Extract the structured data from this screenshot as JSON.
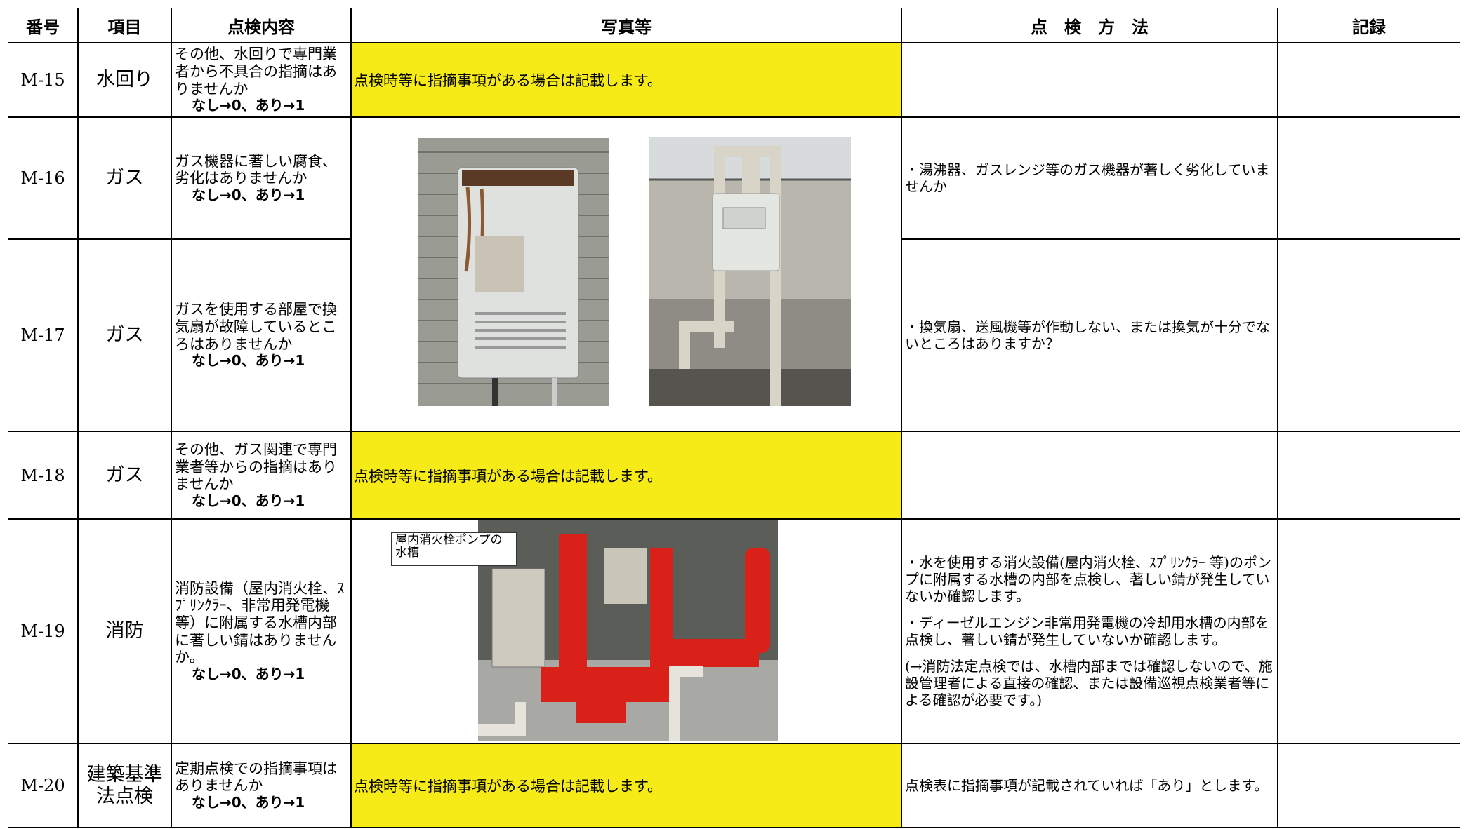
{
  "table": {
    "header": [
      "番号",
      "項目",
      "点検内容",
      "写真等",
      "点　検　方　法",
      "記録"
    ],
    "rows": [
      {
        "no": "M-15",
        "item": "水回り",
        "content": "その他、水回りで専門業者から不具合の指摘はありませんか",
        "answer": "なし→0、あり→1",
        "photo_note": "点検時等に指摘事項がある場合は記載します。"
      },
      {
        "no": "M-16",
        "item": "ガス",
        "content": "ガス機器に著しい腐食、劣化はありませんか",
        "answer": "なし→0、あり→1",
        "method": [
          "・湯沸器、ガスレンジ等のガス機器が著しく劣化していませんか"
        ]
      },
      {
        "no": "M-17",
        "item": "ガス",
        "content": "ガスを使用する部屋で換気扇が故障しているところはありませんか",
        "answer": "なし→0、あり→1",
        "method": [
          "・換気扇、送風機等が作動しない、または換気が十分でないところはありますか？"
        ]
      },
      {
        "no": "M-18",
        "item": "ガス",
        "content": "その他、ガス関連で専門業者等からの指摘はありませんか",
        "answer": "なし→0、あり→1",
        "photo_note": "点検時等に指摘事項がある場合は記載します。"
      },
      {
        "no": "M-19",
        "item": "消防",
        "content": "消防設備（屋内消火栓、ｽﾌﾟﾘﾝｸﾗｰ、非常用発電機等）に附属する水槽内部に著しい錆はありませんか。",
        "answer": "なし→0、あり→1",
        "photo_callout": "屋内消火栓ポンプの水槽",
        "method": [
          "・水を使用する消火設備(屋内消火栓、ｽﾌﾟﾘﾝｸﾗｰ 等)のポンプに附属する水槽の内部を点検し、著しい錆が発生していないか確認します。",
          "・ディーゼルエンジン非常用発電機の冷却用水槽の内部を点検し、著しい錆が発生していないか確認します。",
          "(→消防法定点検では、水槽内部までは確認しないので、施設管理者による直接の確認、または設備巡視点検業者等による確認が必要です。)"
        ]
      },
      {
        "no": "M-20",
        "item": "建築基準法点検",
        "content": "定期点検での指摘事項はありませんか",
        "answer": "なし→0、あり→1",
        "photo_note": "点検時等に指摘事項がある場合は記載します。",
        "method": [
          "点検表に指摘事項が記載されていれば「あり」とします。"
        ]
      }
    ]
  }
}
